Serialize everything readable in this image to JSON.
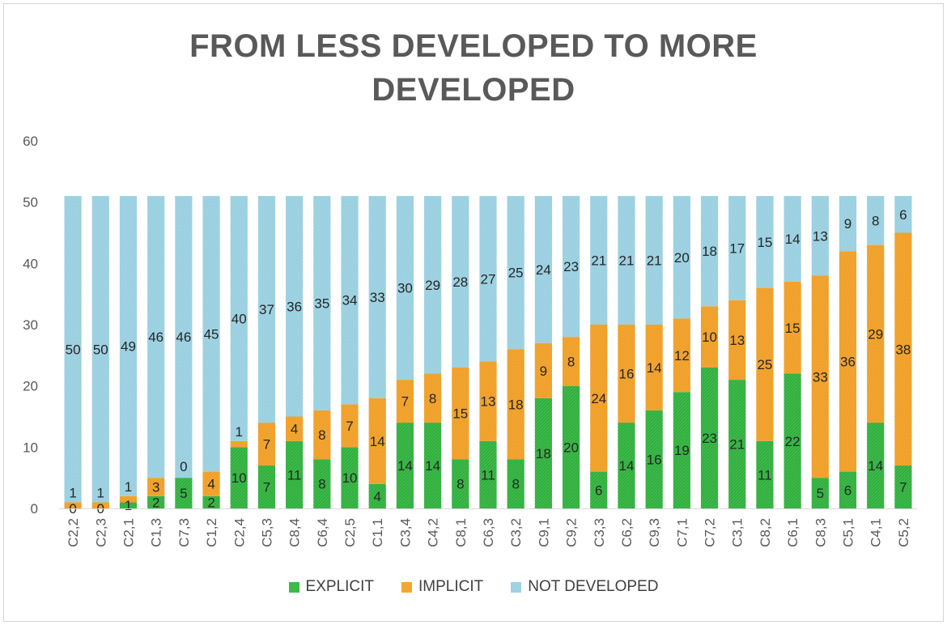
{
  "chart_data": {
    "type": "bar",
    "stacked": true,
    "title": "FROM LESS DEVELOPED TO MORE DEVELOPED",
    "title_lines": [
      "FROM LESS DEVELOPED TO MORE",
      "DEVELOPED"
    ],
    "xlabel": "",
    "ylabel": "",
    "ylim": [
      0,
      60
    ],
    "yticks": [
      0,
      10,
      20,
      30,
      40,
      50,
      60
    ],
    "grid": false,
    "legend_position": "bottom",
    "categories": [
      "C2,2",
      "C2,3",
      "C2,1",
      "C1,3",
      "C7,3",
      "C1,2",
      "C2,4",
      "C5,3",
      "C8,4",
      "C6,4",
      "C2,5",
      "C1,1",
      "C3,4",
      "C4,2",
      "C8,1",
      "C6,3",
      "C3,2",
      "C9,1",
      "C9,2",
      "C3,3",
      "C6,2",
      "C9,3",
      "C7,1",
      "C7,2",
      "C3,1",
      "C8,2",
      "C6,1",
      "C8,3",
      "C5,1",
      "C4,1",
      "C5,2"
    ],
    "series": [
      {
        "name": "EXPLICIT",
        "color": "#3dbb4a",
        "values": [
          0,
          0,
          1,
          2,
          5,
          2,
          10,
          7,
          11,
          8,
          10,
          4,
          14,
          14,
          8,
          11,
          8,
          18,
          20,
          6,
          14,
          16,
          19,
          23,
          21,
          11,
          22,
          5,
          6,
          14,
          7
        ]
      },
      {
        "name": "IMPLICIT",
        "color": "#f5a733",
        "values": [
          1,
          1,
          1,
          3,
          0,
          4,
          1,
          7,
          4,
          8,
          7,
          14,
          7,
          8,
          15,
          13,
          18,
          9,
          8,
          24,
          16,
          14,
          12,
          10,
          13,
          25,
          15,
          33,
          36,
          29,
          38
        ]
      },
      {
        "name": "NOT DEVELOPED",
        "color": "#9fd3e3",
        "values": [
          50,
          50,
          49,
          46,
          46,
          45,
          40,
          37,
          36,
          35,
          34,
          33,
          30,
          29,
          28,
          27,
          25,
          24,
          23,
          21,
          21,
          21,
          20,
          18,
          17,
          15,
          14,
          13,
          9,
          8,
          6
        ]
      }
    ]
  }
}
